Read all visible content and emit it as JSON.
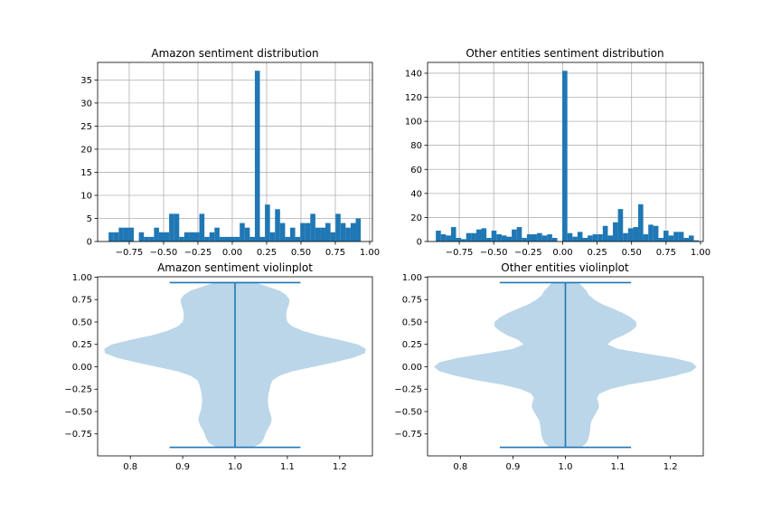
{
  "colors": {
    "bar": "#1f77b4",
    "violin_fill": "#1f77b4",
    "violin_line": "#1f77b4",
    "grid": "#b0b0b0"
  },
  "chart_data": [
    {
      "type": "histogram",
      "title": "Amazon sentiment distribution",
      "xlim": [
        -0.98,
        1.02
      ],
      "ylim": [
        0,
        38.8
      ],
      "xticks": [
        -0.75,
        -0.5,
        -0.25,
        0.0,
        0.25,
        0.5,
        0.75,
        1.0
      ],
      "xtick_labels": [
        "−0.75",
        "−0.50",
        "−0.25",
        "0.00",
        "0.25",
        "0.50",
        "0.75",
        "1.00"
      ],
      "yticks": [
        0,
        5,
        10,
        15,
        20,
        25,
        30,
        35
      ],
      "ytick_labels": [
        "0",
        "5",
        "10",
        "15",
        "20",
        "25",
        "30",
        "35"
      ],
      "grid": true,
      "bin_start": -0.9,
      "bin_width": 0.0367,
      "counts": [
        2,
        2,
        3,
        3,
        3,
        0,
        2,
        1,
        1,
        3,
        2,
        2,
        6,
        6,
        1,
        2,
        2,
        2,
        6,
        1,
        2,
        3,
        1,
        1,
        1,
        1,
        4,
        3,
        1,
        37,
        1,
        8,
        2,
        7,
        4,
        1,
        3,
        1,
        4,
        4,
        6,
        3,
        3,
        4,
        2,
        6,
        4,
        3,
        4,
        5
      ]
    },
    {
      "type": "histogram",
      "title": "Other entities sentiment distribution",
      "xlim": [
        -0.98,
        1.02
      ],
      "ylim": [
        0,
        149
      ],
      "xticks": [
        -0.75,
        -0.5,
        -0.25,
        0.0,
        0.25,
        0.5,
        0.75,
        1.0
      ],
      "xtick_labels": [
        "−0.75",
        "−0.50",
        "−0.25",
        "0.00",
        "0.25",
        "0.50",
        "0.75",
        "1.00"
      ],
      "yticks": [
        0,
        20,
        40,
        60,
        80,
        100,
        120,
        140
      ],
      "ytick_labels": [
        "0",
        "20",
        "40",
        "60",
        "80",
        "100",
        "120",
        "140"
      ],
      "grid": true,
      "bin_start": -0.92,
      "bin_width": 0.0367,
      "counts": [
        9,
        6,
        5,
        12,
        3,
        2,
        7,
        7,
        10,
        11,
        3,
        9,
        6,
        5,
        4,
        10,
        12,
        3,
        6,
        6,
        7,
        5,
        6,
        3,
        0,
        142,
        7,
        4,
        8,
        3,
        5,
        6,
        6,
        13,
        5,
        16,
        27,
        7,
        11,
        12,
        31,
        6,
        14,
        13,
        3,
        9,
        5,
        8,
        8,
        3,
        5,
        1
      ]
    },
    {
      "type": "violin",
      "title": "Amazon sentiment violinplot",
      "xlim": [
        0.7375,
        1.2625
      ],
      "ylim": [
        -0.995,
        1.005
      ],
      "xticks": [
        0.8,
        0.9,
        1.0,
        1.1,
        1.2
      ],
      "xtick_labels": [
        "0.8",
        "0.9",
        "1.0",
        "1.1",
        "1.2"
      ],
      "yticks": [
        -0.75,
        -0.5,
        -0.25,
        0.0,
        0.25,
        0.5,
        0.75,
        1.0
      ],
      "ytick_labels": [
        "−0.75",
        "−0.50",
        "−0.25",
        "0.00",
        "0.25",
        "0.50",
        "0.75",
        "1.00"
      ],
      "position": 1.0,
      "min": -0.9,
      "max": 0.94,
      "extrema_halfwidth": 0.125,
      "density_y": [
        -0.9,
        -0.85,
        -0.8,
        -0.75,
        -0.7,
        -0.65,
        -0.6,
        -0.55,
        -0.5,
        -0.45,
        -0.4,
        -0.35,
        -0.3,
        -0.25,
        -0.2,
        -0.15,
        -0.1,
        -0.05,
        0.0,
        0.05,
        0.1,
        0.15,
        0.2,
        0.25,
        0.3,
        0.35,
        0.4,
        0.45,
        0.5,
        0.55,
        0.6,
        0.65,
        0.7,
        0.75,
        0.8,
        0.85,
        0.9,
        0.94
      ],
      "density_halfwidth": [
        0.035,
        0.05,
        0.055,
        0.058,
        0.062,
        0.067,
        0.07,
        0.069,
        0.066,
        0.064,
        0.063,
        0.063,
        0.064,
        0.066,
        0.068,
        0.072,
        0.085,
        0.11,
        0.15,
        0.19,
        0.225,
        0.248,
        0.25,
        0.235,
        0.2,
        0.16,
        0.13,
        0.11,
        0.1,
        0.098,
        0.098,
        0.1,
        0.103,
        0.104,
        0.098,
        0.085,
        0.06,
        0.04
      ]
    },
    {
      "type": "violin",
      "title": "Other entities violinplot",
      "xlim": [
        0.7375,
        1.2625
      ],
      "ylim": [
        -0.995,
        1.005
      ],
      "xticks": [
        0.8,
        0.9,
        1.0,
        1.1,
        1.2
      ],
      "xtick_labels": [
        "0.8",
        "0.9",
        "1.0",
        "1.1",
        "1.2"
      ],
      "yticks": [
        -0.75,
        -0.5,
        -0.25,
        0.0,
        0.25,
        0.5,
        0.75,
        1.0
      ],
      "ytick_labels": [
        "−0.75",
        "−0.50",
        "−0.25",
        "0.00",
        "0.25",
        "0.50",
        "0.75",
        "1.00"
      ],
      "position": 1.0,
      "min": -0.9,
      "max": 0.94,
      "extrema_halfwidth": 0.125,
      "density_y": [
        -0.9,
        -0.85,
        -0.8,
        -0.75,
        -0.7,
        -0.65,
        -0.6,
        -0.55,
        -0.5,
        -0.45,
        -0.4,
        -0.35,
        -0.3,
        -0.25,
        -0.2,
        -0.15,
        -0.1,
        -0.05,
        0.0,
        0.05,
        0.1,
        0.15,
        0.2,
        0.25,
        0.3,
        0.35,
        0.4,
        0.45,
        0.5,
        0.55,
        0.6,
        0.65,
        0.7,
        0.75,
        0.8,
        0.85,
        0.9,
        0.94
      ],
      "density_halfwidth": [
        0.03,
        0.04,
        0.044,
        0.046,
        0.047,
        0.048,
        0.05,
        0.055,
        0.06,
        0.064,
        0.063,
        0.06,
        0.065,
        0.085,
        0.12,
        0.17,
        0.21,
        0.24,
        0.25,
        0.24,
        0.205,
        0.15,
        0.1,
        0.08,
        0.09,
        0.11,
        0.125,
        0.135,
        0.135,
        0.125,
        0.11,
        0.09,
        0.07,
        0.055,
        0.045,
        0.04,
        0.032,
        0.025
      ]
    }
  ]
}
